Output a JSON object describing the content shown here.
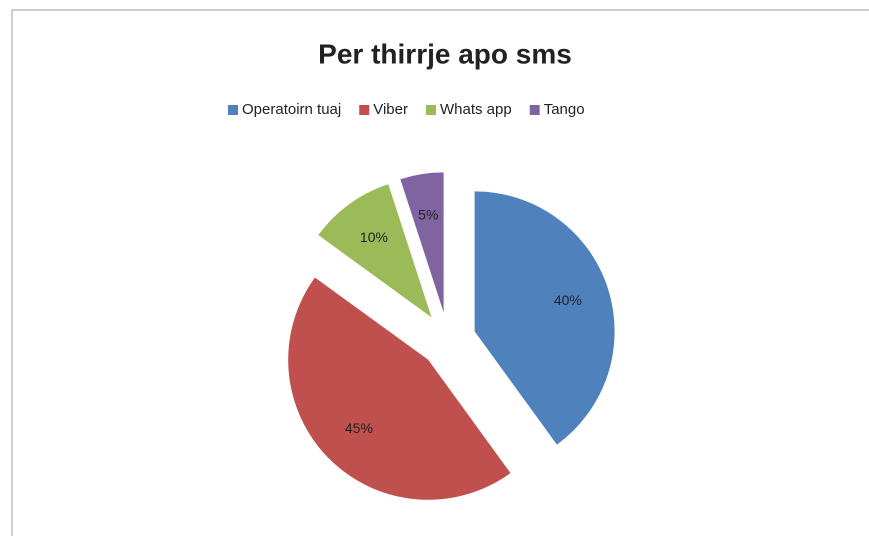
{
  "chart_data": {
    "type": "pie",
    "title": "Per thirrje apo sms",
    "categories": [
      "Operatoirn tuaj",
      "Viber",
      "Whats app",
      "Tango"
    ],
    "values": [
      40,
      45,
      10,
      5
    ],
    "value_labels": [
      "40%",
      "45%",
      "10%",
      "5%"
    ],
    "colors": [
      "#4f81bd",
      "#c0504d",
      "#9bbb59",
      "#8064a2"
    ],
    "legend": "top"
  }
}
